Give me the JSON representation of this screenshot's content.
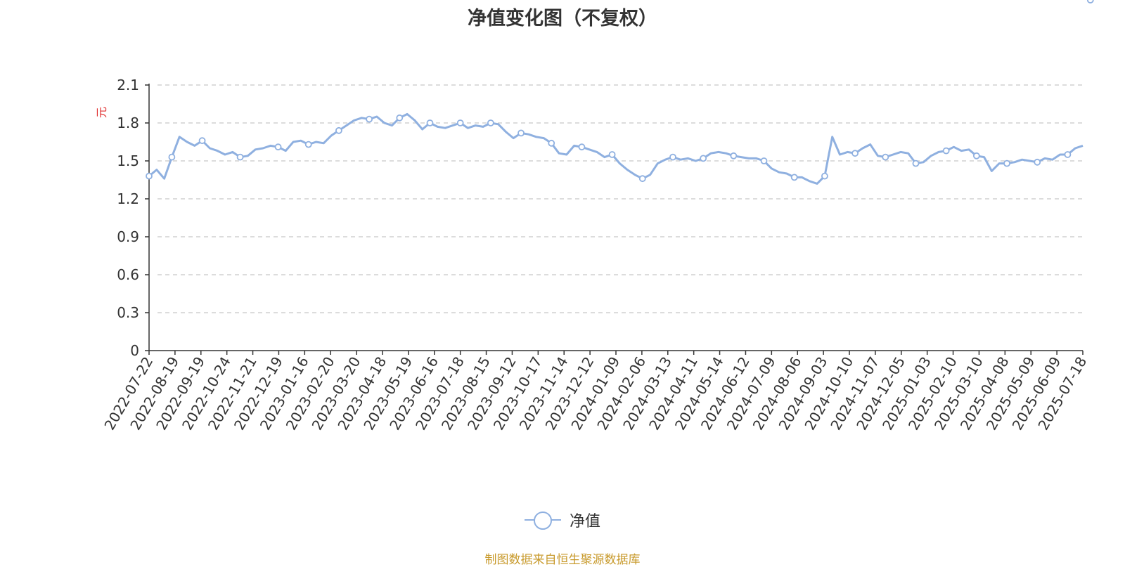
{
  "chart_data": {
    "type": "line",
    "title": "净值变化图（不复权）",
    "ylabel": "元",
    "ylim": [
      0,
      2.1
    ],
    "yticks": [
      0,
      0.3,
      0.6,
      0.9,
      1.2,
      1.5,
      1.8,
      2.1
    ],
    "grid": true,
    "legend_position": "bottom-center",
    "x_tick_labels": [
      "2022-07-22",
      "2022-08-19",
      "2022-09-19",
      "2022-10-24",
      "2022-11-21",
      "2022-12-19",
      "2023-01-16",
      "2023-02-20",
      "2023-03-20",
      "2023-04-18",
      "2023-05-19",
      "2023-06-16",
      "2023-07-18",
      "2023-08-15",
      "2023-09-12",
      "2023-10-17",
      "2023-11-14",
      "2023-12-12",
      "2024-01-09",
      "2024-02-06",
      "2024-03-13",
      "2024-04-11",
      "2024-05-14",
      "2024-06-12",
      "2024-07-09",
      "2024-08-06",
      "2024-09-03",
      "2024-10-10",
      "2024-11-07",
      "2024-12-05",
      "2025-01-03",
      "2025-02-10",
      "2025-03-10",
      "2025-04-08",
      "2025-05-09",
      "2025-06-09",
      "2025-07-18"
    ],
    "series": [
      {
        "name": "净值",
        "color": "#8fb0e0",
        "values": [
          1.38,
          1.43,
          1.36,
          1.53,
          1.69,
          1.65,
          1.62,
          1.66,
          1.6,
          1.58,
          1.55,
          1.57,
          1.53,
          1.54,
          1.59,
          1.6,
          1.62,
          1.61,
          1.58,
          1.65,
          1.66,
          1.63,
          1.65,
          1.64,
          1.7,
          1.74,
          1.78,
          1.82,
          1.84,
          1.83,
          1.85,
          1.8,
          1.78,
          1.84,
          1.87,
          1.82,
          1.75,
          1.8,
          1.77,
          1.76,
          1.78,
          1.8,
          1.76,
          1.78,
          1.77,
          1.8,
          1.79,
          1.73,
          1.68,
          1.72,
          1.71,
          1.69,
          1.68,
          1.64,
          1.56,
          1.55,
          1.62,
          1.61,
          1.59,
          1.57,
          1.53,
          1.55,
          1.48,
          1.43,
          1.39,
          1.36,
          1.39,
          1.48,
          1.51,
          1.53,
          1.51,
          1.52,
          1.5,
          1.52,
          1.56,
          1.57,
          1.56,
          1.54,
          1.53,
          1.52,
          1.52,
          1.5,
          1.44,
          1.41,
          1.4,
          1.37,
          1.37,
          1.34,
          1.32,
          1.38,
          1.69,
          1.55,
          1.57,
          1.56,
          1.6,
          1.63,
          1.54,
          1.53,
          1.55,
          1.57,
          1.56,
          1.48,
          1.49,
          1.54,
          1.57,
          1.58,
          1.61,
          1.58,
          1.59,
          1.54,
          1.53,
          1.42,
          1.48,
          1.48,
          1.49,
          1.51,
          1.5,
          1.49,
          1.52,
          1.51,
          1.55,
          1.55,
          1.6,
          1.62
        ],
        "marker_indices": [
          0,
          3,
          7,
          12,
          17,
          21,
          25,
          29,
          33,
          37,
          41,
          45,
          49,
          53,
          57,
          61,
          65,
          69,
          73,
          77,
          81,
          85,
          89,
          93,
          97,
          101,
          105,
          109,
          113,
          117,
          121,
          124
        ]
      }
    ]
  },
  "legend": {
    "label": "净值"
  },
  "source": "制图数据来自恒生聚源数据库"
}
